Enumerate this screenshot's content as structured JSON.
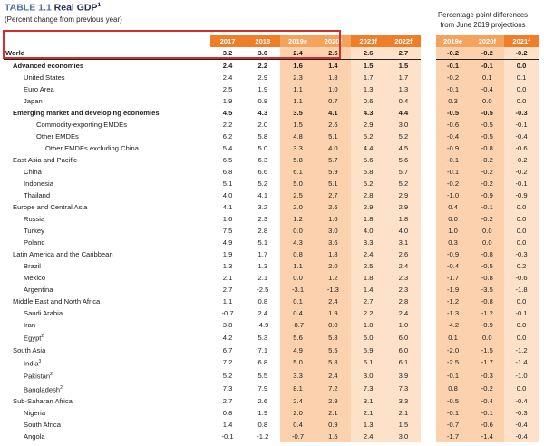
{
  "header": {
    "table_num": "TABLE 1.1",
    "table_title": "Real GDP",
    "title_sup": "1",
    "subtitle": "(Percent change from previous year)",
    "pp_line1": "Percentage point differences",
    "pp_line2": "from June 2019 projections"
  },
  "columns": {
    "years": [
      "2017",
      "2018",
      "2019e",
      "2020f",
      "2021f",
      "2022f"
    ],
    "pp": [
      "2019e",
      "2020f",
      "2021f"
    ]
  },
  "rows": [
    {
      "label": "World",
      "sup": "",
      "values": [
        "3.2",
        "3.0",
        "2.4",
        "2.5",
        "2.6",
        "2.7"
      ],
      "pp": [
        "-0.2",
        "-0.2",
        "-0.2"
      ]
    },
    {
      "label": "Advanced economies",
      "sup": "",
      "values": [
        "2.4",
        "2.2",
        "1.6",
        "1.4",
        "1.5",
        "1.5"
      ],
      "pp": [
        "-0.1",
        "-0.1",
        "0.0"
      ]
    },
    {
      "label": "United States",
      "sup": "",
      "values": [
        "2.4",
        "2.9",
        "2.3",
        "1.8",
        "1.7",
        "1.7"
      ],
      "pp": [
        "-0.2",
        "0.1",
        "0.1"
      ]
    },
    {
      "label": "Euro Area",
      "sup": "",
      "values": [
        "2.5",
        "1.9",
        "1.1",
        "1.0",
        "1.3",
        "1.3"
      ],
      "pp": [
        "-0.1",
        "-0.4",
        "0.0"
      ]
    },
    {
      "label": "Japan",
      "sup": "",
      "values": [
        "1.9",
        "0.8",
        "1.1",
        "0.7",
        "0.6",
        "0.4"
      ],
      "pp": [
        "0.3",
        "0.0",
        "0.0"
      ]
    },
    {
      "label": "Emerging market and developing economies",
      "sup": "",
      "values": [
        "4.5",
        "4.3",
        "3.5",
        "4.1",
        "4.3",
        "4.4"
      ],
      "pp": [
        "-0.5",
        "-0.5",
        "-0.3"
      ]
    },
    {
      "label": "Commodity-exporting EMDEs",
      "sup": "",
      "values": [
        "2.2",
        "2.0",
        "1.5",
        "2.6",
        "2.9",
        "3.0"
      ],
      "pp": [
        "-0.6",
        "-0.5",
        "-0.1"
      ]
    },
    {
      "label": "Other EMDEs",
      "sup": "",
      "values": [
        "6.2",
        "5.8",
        "4.8",
        "5.1",
        "5.2",
        "5.2"
      ],
      "pp": [
        "-0.4",
        "-0.5",
        "-0.4"
      ]
    },
    {
      "label": "Other EMDEs excluding China",
      "sup": "",
      "values": [
        "5.4",
        "5.0",
        "3.3",
        "4.0",
        "4.4",
        "4.5"
      ],
      "pp": [
        "-0.9",
        "-0.8",
        "-0.6"
      ]
    },
    {
      "label": "East Asia and Pacific",
      "sup": "",
      "values": [
        "6.5",
        "6.3",
        "5.8",
        "5.7",
        "5.6",
        "5.6"
      ],
      "pp": [
        "-0.1",
        "-0.2",
        "-0.2"
      ]
    },
    {
      "label": "China",
      "sup": "",
      "values": [
        "6.8",
        "6.6",
        "6.1",
        "5.9",
        "5.8",
        "5.7"
      ],
      "pp": [
        "-0.1",
        "-0.2",
        "-0.2"
      ]
    },
    {
      "label": "Indonesia",
      "sup": "",
      "values": [
        "5.1",
        "5.2",
        "5.0",
        "5.1",
        "5.2",
        "5.2"
      ],
      "pp": [
        "-0.2",
        "-0.2",
        "-0.1"
      ]
    },
    {
      "label": "Thailand",
      "sup": "",
      "values": [
        "4.0",
        "4.1",
        "2.5",
        "2.7",
        "2.8",
        "2.9"
      ],
      "pp": [
        "-1.0",
        "-0.9",
        "-0.9"
      ]
    },
    {
      "label": "Europe and Central Asia",
      "sup": "",
      "values": [
        "4.1",
        "3.2",
        "2.0",
        "2.6",
        "2.9",
        "2.9"
      ],
      "pp": [
        "0.4",
        "-0.1",
        "0.0"
      ]
    },
    {
      "label": "Russia",
      "sup": "",
      "values": [
        "1.6",
        "2.3",
        "1.2",
        "1.6",
        "1.8",
        "1.8"
      ],
      "pp": [
        "0.0",
        "-0.2",
        "0.0"
      ]
    },
    {
      "label": "Turkey",
      "sup": "",
      "values": [
        "7.5",
        "2.8",
        "0.0",
        "3.0",
        "4.0",
        "4.0"
      ],
      "pp": [
        "1.0",
        "0.0",
        "0.0"
      ]
    },
    {
      "label": "Poland",
      "sup": "",
      "values": [
        "4.9",
        "5.1",
        "4.3",
        "3.6",
        "3.3",
        "3.1"
      ],
      "pp": [
        "0.3",
        "0.0",
        "0.0"
      ]
    },
    {
      "label": "Latin America and the Caribbean",
      "sup": "",
      "values": [
        "1.9",
        "1.7",
        "0.8",
        "1.8",
        "2.4",
        "2.6"
      ],
      "pp": [
        "-0.9",
        "-0.8",
        "-0.3"
      ]
    },
    {
      "label": "Brazil",
      "sup": "",
      "values": [
        "1.3",
        "1.3",
        "1.1",
        "2.0",
        "2.5",
        "2.4"
      ],
      "pp": [
        "-0.4",
        "-0.5",
        "0.2"
      ]
    },
    {
      "label": "Mexico",
      "sup": "",
      "values": [
        "2.1",
        "2.1",
        "0.0",
        "1.2",
        "1.8",
        "2.3"
      ],
      "pp": [
        "-1.7",
        "-0.8",
        "-0.6"
      ]
    },
    {
      "label": "Argentina",
      "sup": "",
      "values": [
        "2.7",
        "-2.5",
        "-3.1",
        "-1.3",
        "1.4",
        "2.3"
      ],
      "pp": [
        "-1.9",
        "-3.5",
        "-1.8"
      ]
    },
    {
      "label": "Middle East and North Africa",
      "sup": "",
      "values": [
        "1.1",
        "0.8",
        "0.1",
        "2.4",
        "2.7",
        "2.8"
      ],
      "pp": [
        "-1.2",
        "-0.8",
        "0.0"
      ]
    },
    {
      "label": "Saudi Arabia",
      "sup": "",
      "values": [
        "-0.7",
        "2.4",
        "0.4",
        "1.9",
        "2.2",
        "2.4"
      ],
      "pp": [
        "-1.3",
        "-1.2",
        "-0.1"
      ]
    },
    {
      "label": "Iran",
      "sup": "",
      "values": [
        "3.8",
        "-4.9",
        "-8.7",
        "0.0",
        "1.0",
        "1.0"
      ],
      "pp": [
        "-4.2",
        "-0.9",
        "0.0"
      ]
    },
    {
      "label": "Egypt",
      "sup": "2",
      "values": [
        "4.2",
        "5.3",
        "5.6",
        "5.8",
        "6.0",
        "6.0"
      ],
      "pp": [
        "0.1",
        "0.0",
        "0.0"
      ]
    },
    {
      "label": "South Asia",
      "sup": "",
      "values": [
        "6.7",
        "7.1",
        "4.9",
        "5.5",
        "5.9",
        "6.0"
      ],
      "pp": [
        "-2.0",
        "-1.5",
        "-1.2"
      ]
    },
    {
      "label": "India",
      "sup": "3",
      "values": [
        "7.2",
        "6.8",
        "5.0",
        "5.8",
        "6.1",
        "6.1"
      ],
      "pp": [
        "-2.5",
        "-1.7",
        "-1.4"
      ]
    },
    {
      "label": "Pakistan",
      "sup": "2",
      "values": [
        "5.2",
        "5.5",
        "3.3",
        "2.4",
        "3.0",
        "3.9"
      ],
      "pp": [
        "-0.1",
        "-0.3",
        "-1.0"
      ]
    },
    {
      "label": "Bangladesh",
      "sup": "2",
      "values": [
        "7.3",
        "7.9",
        "8.1",
        "7.2",
        "7.3",
        "7.3"
      ],
      "pp": [
        "0.8",
        "-0.2",
        "0.0"
      ]
    },
    {
      "label": "Sub-Saharan Africa",
      "sup": "",
      "values": [
        "2.7",
        "2.6",
        "2.4",
        "2.9",
        "3.1",
        "3.3"
      ],
      "pp": [
        "-0.5",
        "-0.4",
        "-0.4"
      ]
    },
    {
      "label": "Nigeria",
      "sup": "",
      "values": [
        "0.8",
        "1.9",
        "2.0",
        "2.1",
        "2.1",
        "2.1"
      ],
      "pp": [
        "-0.1",
        "-0.1",
        "-0.3"
      ]
    },
    {
      "label": "South Africa",
      "sup": "",
      "values": [
        "1.4",
        "0.8",
        "0.4",
        "0.9",
        "1.3",
        "1.5"
      ],
      "pp": [
        "-0.7",
        "-0.6",
        "-0.4"
      ]
    },
    {
      "label": "Angola",
      "sup": "",
      "values": [
        "-0.1",
        "-1.2",
        "-0.7",
        "1.5",
        "2.4",
        "3.0"
      ],
      "pp": [
        "-1.7",
        "-1.4",
        "-0.4"
      ]
    }
  ]
}
